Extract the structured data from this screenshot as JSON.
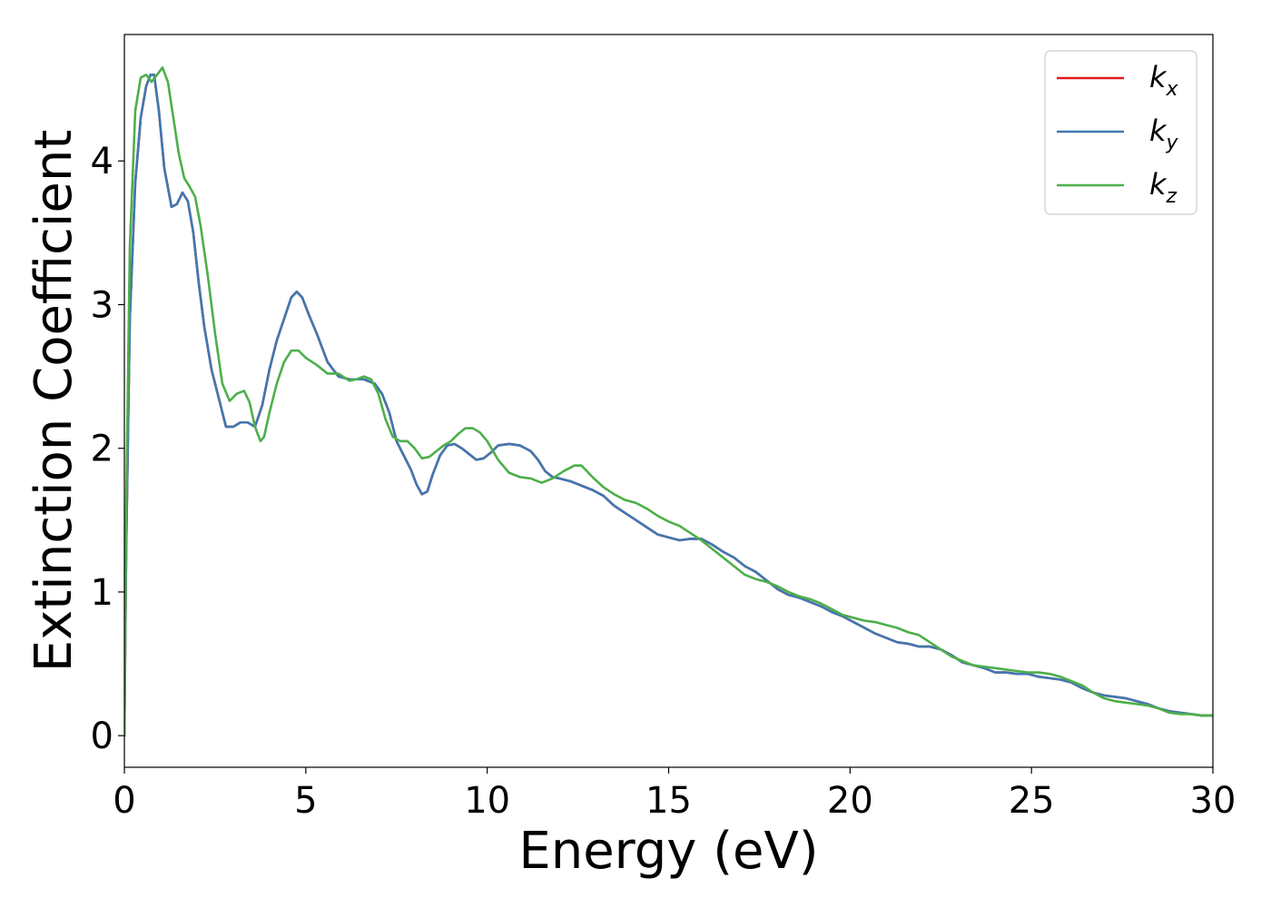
{
  "chart_data": {
    "type": "line",
    "xlabel": "Energy (eV)",
    "ylabel": "Extinction Coefficient",
    "xlim": [
      0,
      30
    ],
    "ylim": [
      -0.22,
      4.88
    ],
    "xticks": [
      0,
      5,
      10,
      15,
      20,
      25,
      30
    ],
    "yticks": [
      0,
      1,
      2,
      3,
      4
    ],
    "grid": false,
    "legend_position": "top-right",
    "series": [
      {
        "name": "k_x",
        "label_base": "k",
        "label_sub": "x",
        "color": "#e41a1c",
        "x": [
          0,
          0.05,
          0.15,
          0.3,
          0.45,
          0.6,
          0.72,
          0.82,
          0.95,
          1.1,
          1.3,
          1.45,
          1.6,
          1.75,
          1.9,
          2.05,
          2.2,
          2.4,
          2.6,
          2.8,
          3.0,
          3.2,
          3.4,
          3.6,
          3.8,
          4.0,
          4.2,
          4.4,
          4.6,
          4.75,
          4.9,
          5.1,
          5.3,
          5.6,
          5.9,
          6.2,
          6.6,
          6.9,
          7.1,
          7.3,
          7.5,
          7.7,
          7.9,
          8.05,
          8.2,
          8.35,
          8.5,
          8.7,
          8.9,
          9.1,
          9.3,
          9.5,
          9.7,
          9.9,
          10.1,
          10.3,
          10.6,
          10.9,
          11.2,
          11.4,
          11.6,
          11.8,
          12.0,
          12.3,
          12.6,
          12.9,
          13.2,
          13.5,
          13.8,
          14.1,
          14.4,
          14.7,
          15.0,
          15.3,
          15.6,
          15.9,
          16.2,
          16.5,
          16.8,
          17.1,
          17.4,
          17.7,
          18.0,
          18.3,
          18.6,
          18.9,
          19.2,
          19.5,
          19.8,
          20.1,
          20.4,
          20.7,
          21.0,
          21.3,
          21.6,
          21.9,
          22.2,
          22.5,
          22.8,
          23.1,
          23.4,
          23.7,
          24.0,
          24.3,
          24.6,
          24.9,
          25.2,
          25.5,
          25.8,
          26.1,
          26.4,
          26.7,
          27.0,
          27.3,
          27.6,
          27.9,
          28.2,
          28.5,
          28.8,
          29.1,
          29.4,
          29.7,
          30.0
        ],
        "y": [
          0,
          1.3,
          2.9,
          3.85,
          4.3,
          4.52,
          4.6,
          4.6,
          4.35,
          3.95,
          3.68,
          3.7,
          3.78,
          3.72,
          3.5,
          3.15,
          2.85,
          2.55,
          2.35,
          2.15,
          2.15,
          2.18,
          2.18,
          2.15,
          2.3,
          2.55,
          2.75,
          2.9,
          3.05,
          3.09,
          3.05,
          2.92,
          2.8,
          2.6,
          2.5,
          2.48,
          2.48,
          2.45,
          2.38,
          2.25,
          2.05,
          1.95,
          1.85,
          1.75,
          1.68,
          1.7,
          1.82,
          1.95,
          2.02,
          2.03,
          2.0,
          1.96,
          1.92,
          1.93,
          1.97,
          2.02,
          2.03,
          2.02,
          1.98,
          1.92,
          1.84,
          1.8,
          1.79,
          1.77,
          1.74,
          1.71,
          1.67,
          1.6,
          1.55,
          1.5,
          1.45,
          1.4,
          1.38,
          1.36,
          1.37,
          1.37,
          1.33,
          1.28,
          1.24,
          1.18,
          1.14,
          1.08,
          1.02,
          0.98,
          0.96,
          0.93,
          0.9,
          0.86,
          0.83,
          0.79,
          0.75,
          0.71,
          0.68,
          0.65,
          0.64,
          0.62,
          0.62,
          0.6,
          0.56,
          0.51,
          0.49,
          0.47,
          0.44,
          0.44,
          0.43,
          0.43,
          0.41,
          0.4,
          0.39,
          0.37,
          0.33,
          0.3,
          0.28,
          0.27,
          0.26,
          0.24,
          0.22,
          0.19,
          0.17,
          0.16,
          0.15,
          0.14,
          0.14
        ]
      },
      {
        "name": "k_y",
        "label_base": "k",
        "label_sub": "y",
        "color": "#3f78b1",
        "x": [
          0,
          0.05,
          0.15,
          0.3,
          0.45,
          0.6,
          0.72,
          0.82,
          0.95,
          1.1,
          1.3,
          1.45,
          1.6,
          1.75,
          1.9,
          2.05,
          2.2,
          2.4,
          2.6,
          2.8,
          3.0,
          3.2,
          3.4,
          3.6,
          3.8,
          4.0,
          4.2,
          4.4,
          4.6,
          4.75,
          4.9,
          5.1,
          5.3,
          5.6,
          5.9,
          6.2,
          6.6,
          6.9,
          7.1,
          7.3,
          7.5,
          7.7,
          7.9,
          8.05,
          8.2,
          8.35,
          8.5,
          8.7,
          8.9,
          9.1,
          9.3,
          9.5,
          9.7,
          9.9,
          10.1,
          10.3,
          10.6,
          10.9,
          11.2,
          11.4,
          11.6,
          11.8,
          12.0,
          12.3,
          12.6,
          12.9,
          13.2,
          13.5,
          13.8,
          14.1,
          14.4,
          14.7,
          15.0,
          15.3,
          15.6,
          15.9,
          16.2,
          16.5,
          16.8,
          17.1,
          17.4,
          17.7,
          18.0,
          18.3,
          18.6,
          18.9,
          19.2,
          19.5,
          19.8,
          20.1,
          20.4,
          20.7,
          21.0,
          21.3,
          21.6,
          21.9,
          22.2,
          22.5,
          22.8,
          23.1,
          23.4,
          23.7,
          24.0,
          24.3,
          24.6,
          24.9,
          25.2,
          25.5,
          25.8,
          26.1,
          26.4,
          26.7,
          27.0,
          27.3,
          27.6,
          27.9,
          28.2,
          28.5,
          28.8,
          29.1,
          29.4,
          29.7,
          30.0
        ],
        "y": [
          0,
          1.3,
          2.9,
          3.85,
          4.3,
          4.52,
          4.6,
          4.6,
          4.35,
          3.95,
          3.68,
          3.7,
          3.78,
          3.72,
          3.5,
          3.15,
          2.85,
          2.55,
          2.35,
          2.15,
          2.15,
          2.18,
          2.18,
          2.15,
          2.3,
          2.55,
          2.75,
          2.9,
          3.05,
          3.09,
          3.05,
          2.92,
          2.8,
          2.6,
          2.5,
          2.48,
          2.48,
          2.45,
          2.38,
          2.25,
          2.05,
          1.95,
          1.85,
          1.75,
          1.68,
          1.7,
          1.82,
          1.95,
          2.02,
          2.03,
          2.0,
          1.96,
          1.92,
          1.93,
          1.97,
          2.02,
          2.03,
          2.02,
          1.98,
          1.92,
          1.84,
          1.8,
          1.79,
          1.77,
          1.74,
          1.71,
          1.67,
          1.6,
          1.55,
          1.5,
          1.45,
          1.4,
          1.38,
          1.36,
          1.37,
          1.37,
          1.33,
          1.28,
          1.24,
          1.18,
          1.14,
          1.08,
          1.02,
          0.98,
          0.96,
          0.93,
          0.9,
          0.86,
          0.83,
          0.79,
          0.75,
          0.71,
          0.68,
          0.65,
          0.64,
          0.62,
          0.62,
          0.6,
          0.56,
          0.51,
          0.49,
          0.47,
          0.44,
          0.44,
          0.43,
          0.43,
          0.41,
          0.4,
          0.39,
          0.37,
          0.33,
          0.3,
          0.28,
          0.27,
          0.26,
          0.24,
          0.22,
          0.19,
          0.17,
          0.16,
          0.15,
          0.14,
          0.14
        ]
      },
      {
        "name": "k_z",
        "label_base": "k",
        "label_sub": "z",
        "color": "#4daf4a",
        "x": [
          0,
          0.05,
          0.15,
          0.3,
          0.45,
          0.6,
          0.75,
          0.9,
          1.05,
          1.2,
          1.35,
          1.5,
          1.65,
          1.8,
          1.95,
          2.1,
          2.3,
          2.5,
          2.7,
          2.9,
          3.1,
          3.3,
          3.45,
          3.6,
          3.75,
          3.85,
          4.0,
          4.2,
          4.4,
          4.6,
          4.8,
          5.0,
          5.3,
          5.6,
          5.9,
          6.2,
          6.4,
          6.6,
          6.8,
          7.0,
          7.2,
          7.4,
          7.6,
          7.8,
          8.0,
          8.2,
          8.4,
          8.6,
          8.8,
          9.0,
          9.2,
          9.4,
          9.6,
          9.8,
          10.0,
          10.3,
          10.6,
          10.9,
          11.2,
          11.5,
          11.8,
          12.1,
          12.4,
          12.6,
          12.9,
          13.2,
          13.5,
          13.8,
          14.1,
          14.4,
          14.7,
          15.0,
          15.3,
          15.6,
          15.9,
          16.2,
          16.5,
          16.8,
          17.1,
          17.4,
          17.7,
          18.0,
          18.3,
          18.6,
          18.9,
          19.2,
          19.5,
          19.8,
          20.1,
          20.4,
          20.7,
          21.0,
          21.3,
          21.6,
          21.9,
          22.2,
          22.5,
          22.8,
          23.1,
          23.4,
          23.7,
          24.0,
          24.3,
          24.6,
          24.9,
          25.2,
          25.5,
          25.8,
          26.1,
          26.4,
          26.7,
          27.0,
          27.3,
          27.6,
          27.9,
          28.2,
          28.5,
          28.8,
          29.1,
          29.4,
          29.7,
          30.0
        ],
        "y": [
          0,
          1.6,
          3.4,
          4.35,
          4.58,
          4.6,
          4.55,
          4.6,
          4.65,
          4.55,
          4.3,
          4.05,
          3.88,
          3.82,
          3.75,
          3.55,
          3.2,
          2.8,
          2.45,
          2.33,
          2.38,
          2.4,
          2.32,
          2.15,
          2.05,
          2.08,
          2.25,
          2.45,
          2.6,
          2.68,
          2.68,
          2.63,
          2.58,
          2.52,
          2.52,
          2.47,
          2.48,
          2.5,
          2.48,
          2.38,
          2.2,
          2.08,
          2.05,
          2.05,
          2.0,
          1.93,
          1.94,
          1.98,
          2.02,
          2.05,
          2.1,
          2.14,
          2.14,
          2.11,
          2.05,
          1.92,
          1.83,
          1.8,
          1.79,
          1.76,
          1.79,
          1.84,
          1.88,
          1.88,
          1.8,
          1.73,
          1.68,
          1.64,
          1.62,
          1.58,
          1.53,
          1.49,
          1.46,
          1.41,
          1.36,
          1.3,
          1.24,
          1.18,
          1.12,
          1.09,
          1.07,
          1.04,
          1.0,
          0.97,
          0.95,
          0.92,
          0.88,
          0.84,
          0.82,
          0.8,
          0.79,
          0.77,
          0.75,
          0.72,
          0.7,
          0.65,
          0.6,
          0.55,
          0.52,
          0.49,
          0.48,
          0.47,
          0.46,
          0.45,
          0.44,
          0.44,
          0.43,
          0.41,
          0.38,
          0.35,
          0.3,
          0.26,
          0.24,
          0.23,
          0.22,
          0.21,
          0.19,
          0.16,
          0.15,
          0.15,
          0.14,
          0.14
        ]
      }
    ]
  }
}
